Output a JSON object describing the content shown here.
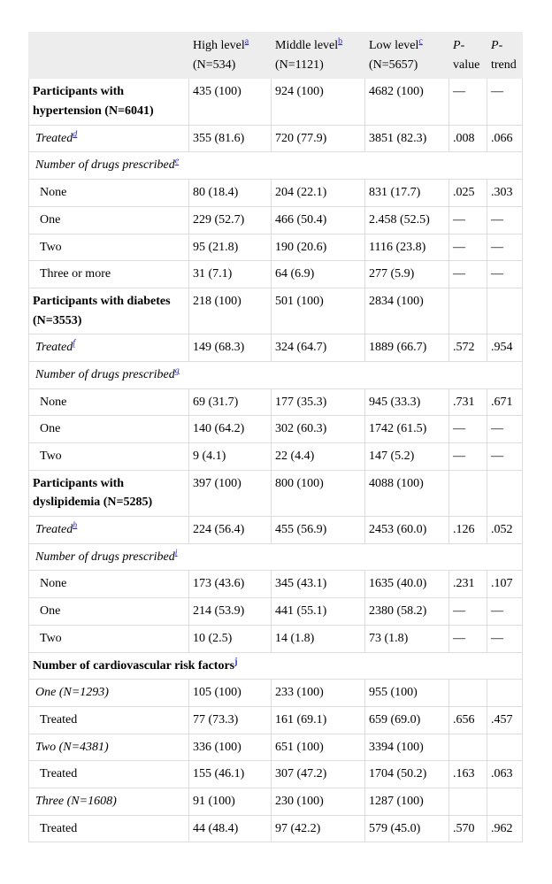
{
  "colors": {
    "text": "#000000",
    "border": "#dddddd",
    "hbg": "#ededed",
    "link": "#2b2bc8"
  },
  "table": {
    "columns": [
      {
        "lead": "High level",
        "lead_italic": false,
        "sup": "a",
        "line2": "(N=534)"
      },
      {
        "lead": "Middle level",
        "lead_italic": false,
        "sup": "b",
        "line2": "(N=1121)"
      },
      {
        "lead": "Low level",
        "lead_italic": false,
        "sup": "c",
        "line2": "(N=5657)"
      },
      {
        "lead": "P",
        "lead_italic": true,
        "rest": "-",
        "line2": "value"
      },
      {
        "lead": "P",
        "lead_italic": true,
        "rest": "-",
        "line2": "trend"
      }
    ],
    "rows": [
      {
        "style": "bold",
        "label": "Participants with hypertension (N=6041)",
        "cells": [
          "435 (100)",
          "924 (100)",
          "4682 (100)",
          "—",
          "—"
        ]
      },
      {
        "style": "italic",
        "label": "Treated",
        "sup": "d",
        "cells": [
          "355 (81.6)",
          "720 (77.9)",
          "3851 (82.3)",
          ".008",
          ".066"
        ]
      },
      {
        "style": "span_italic",
        "label": "Number of drugs prescribed",
        "sup": "e"
      },
      {
        "style": "sub",
        "label": "None",
        "cells": [
          "80 (18.4)",
          "204 (22.1)",
          "831 (17.7)",
          ".025",
          ".303"
        ]
      },
      {
        "style": "sub",
        "label": "One",
        "cells": [
          "229 (52.7)",
          "466 (50.4)",
          "2.458 (52.5)",
          "—",
          "—"
        ]
      },
      {
        "style": "sub",
        "label": "Two",
        "cells": [
          "95 (21.8)",
          "190 (20.6)",
          "1116 (23.8)",
          "—",
          "—"
        ]
      },
      {
        "style": "sub",
        "label": "Three or more",
        "cells": [
          "31 (7.1)",
          "64 (6.9)",
          "277 (5.9)",
          "—",
          "—"
        ]
      },
      {
        "style": "bold",
        "label": "Participants with diabetes (N=3553)",
        "cells": [
          "218 (100)",
          "501 (100)",
          "2834 (100)",
          "",
          ""
        ]
      },
      {
        "style": "italic",
        "label": "Treated",
        "sup": "f",
        "cells": [
          "149 (68.3)",
          "324 (64.7)",
          "1889 (66.7)",
          ".572",
          ".954"
        ]
      },
      {
        "style": "span_italic",
        "label": "Number of drugs prescribed",
        "sup": "g"
      },
      {
        "style": "sub",
        "label": "None",
        "cells": [
          "69 (31.7)",
          "177 (35.3)",
          "945 (33.3)",
          ".731",
          ".671"
        ]
      },
      {
        "style": "sub",
        "label": "One",
        "cells": [
          "140 (64.2)",
          "302 (60.3)",
          "1742 (61.5)",
          "—",
          "—"
        ]
      },
      {
        "style": "sub",
        "label": "Two",
        "cells": [
          "9 (4.1)",
          "22 (4.4)",
          "147 (5.2)",
          "—",
          "—"
        ]
      },
      {
        "style": "bold",
        "label": "Participants with dyslipidemia (N=5285)",
        "cells": [
          "397 (100)",
          "800 (100)",
          "4088 (100)",
          "",
          ""
        ]
      },
      {
        "style": "italic",
        "label": "Treated",
        "sup": "h",
        "cells": [
          "224 (56.4)",
          "455 (56.9)",
          "2453 (60.0)",
          ".126",
          ".052"
        ]
      },
      {
        "style": "span_italic",
        "label": "Number of drugs prescribed",
        "sup": "i"
      },
      {
        "style": "sub",
        "label": "None",
        "cells": [
          "173 (43.6)",
          "345 (43.1)",
          "1635 (40.0)",
          ".231",
          ".107"
        ]
      },
      {
        "style": "sub",
        "label": "One",
        "cells": [
          "214 (53.9)",
          "441 (55.1)",
          "2380 (58.2)",
          "—",
          "—"
        ]
      },
      {
        "style": "sub",
        "label": "Two",
        "cells": [
          "10 (2.5)",
          "14 (1.8)",
          "73 (1.8)",
          "—",
          "—"
        ]
      },
      {
        "style": "span_bold",
        "label": "Number of cardiovascular risk factors",
        "sup": "j"
      },
      {
        "style": "italic",
        "label": "One (N=1293)",
        "cells": [
          "105 (100)",
          "233 (100)",
          "955 (100)",
          "",
          ""
        ]
      },
      {
        "style": "sub",
        "label": "Treated",
        "cells": [
          "77 (73.3)",
          "161 (69.1)",
          "659 (69.0)",
          ".656",
          ".457"
        ]
      },
      {
        "style": "italic",
        "label": "Two (N=4381)",
        "cells": [
          "336 (100)",
          "651 (100)",
          "3394 (100)",
          "",
          ""
        ]
      },
      {
        "style": "sub",
        "label": "Treated",
        "cells": [
          "155 (46.1)",
          "307 (47.2)",
          "1704 (50.2)",
          ".163",
          ".063"
        ]
      },
      {
        "style": "italic",
        "label": "Three (N=1608)",
        "cells": [
          "91 (100)",
          "230 (100)",
          "1287 (100)",
          "",
          ""
        ]
      },
      {
        "style": "sub",
        "label": "Treated",
        "cells": [
          "44 (48.4)",
          "97 (42.2)",
          "579 (45.0)",
          ".570",
          ".962"
        ]
      }
    ]
  }
}
